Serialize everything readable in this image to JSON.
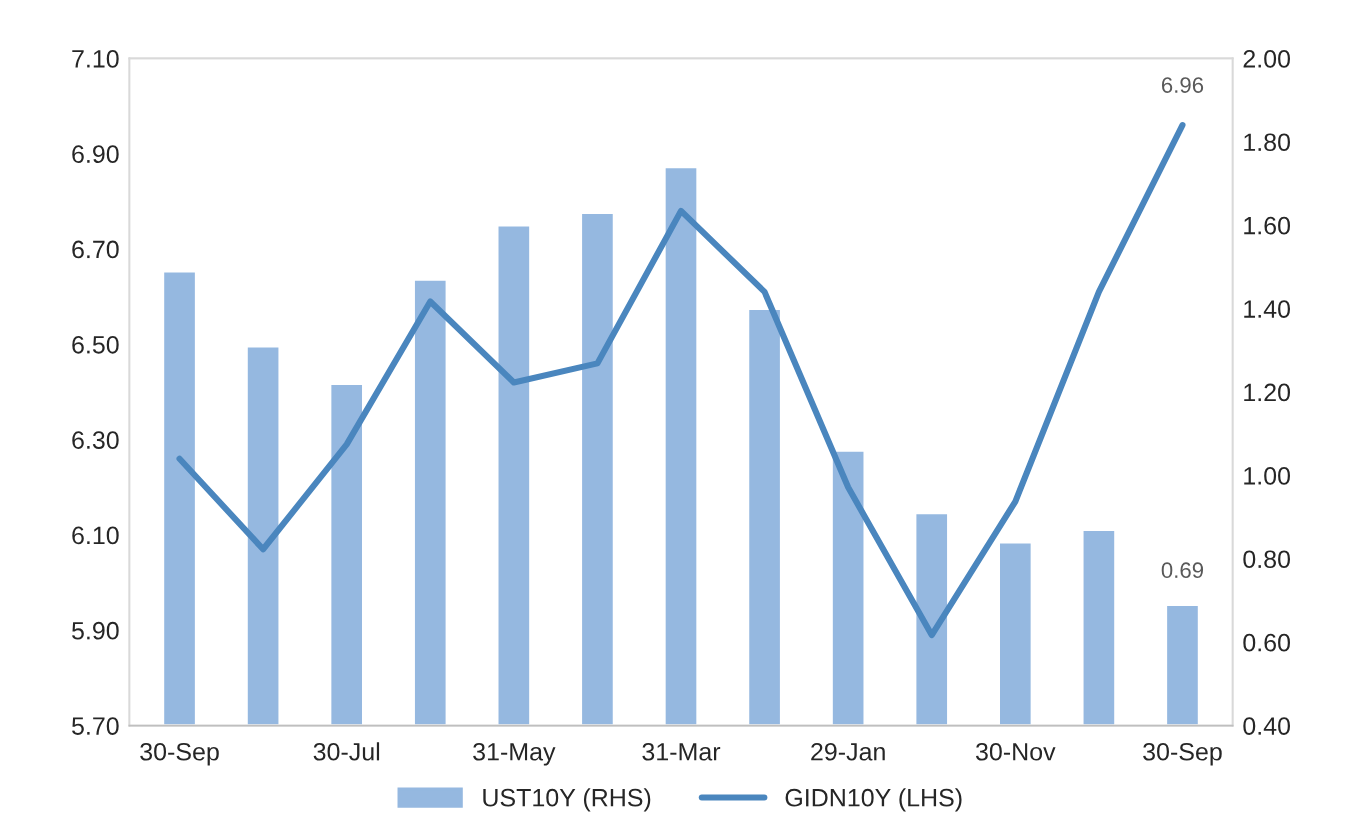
{
  "chart_data": {
    "type": "bar",
    "categories": [
      "30-Sep",
      null,
      "30-Jul",
      null,
      "31-May",
      null,
      "31-Mar",
      null,
      "29-Jan",
      null,
      "30-Nov",
      null,
      "30-Sep"
    ],
    "series": [
      {
        "name": "UST10Y (RHS)",
        "axis": "y2",
        "color": "#95b8e0",
        "values": [
          1.49,
          1.31,
          1.22,
          1.47,
          1.6,
          1.63,
          1.74,
          1.4,
          1.06,
          0.91,
          0.84,
          0.87,
          0.69
        ],
        "value_labels": [
          null,
          null,
          null,
          null,
          null,
          null,
          null,
          null,
          null,
          null,
          null,
          null,
          "0.69"
        ]
      },
      {
        "name": "GIDN10Y (LHS)",
        "type": "line",
        "color": "#4a86be",
        "values": [
          6.26,
          6.07,
          6.29,
          6.59,
          6.42,
          6.46,
          6.78,
          6.61,
          6.2,
          5.89,
          6.17,
          6.61,
          6.96
        ],
        "value_labels": [
          null,
          null,
          null,
          null,
          null,
          null,
          null,
          null,
          null,
          null,
          null,
          null,
          "6.96"
        ]
      }
    ],
    "ylim": [
      5.7,
      7.1
    ],
    "yticks": [
      {
        "value": 5.7,
        "label": "5.70"
      },
      {
        "value": 5.9,
        "label": "5.90"
      },
      {
        "value": 6.1,
        "label": "6.10"
      },
      {
        "value": 6.3,
        "label": "6.30"
      },
      {
        "value": 6.5,
        "label": "6.50"
      },
      {
        "value": 6.7,
        "label": "6.70"
      },
      {
        "value": 6.9,
        "label": "6.90"
      },
      {
        "value": 7.1,
        "label": "7.10"
      }
    ],
    "y2lim": [
      0.4,
      2.0
    ],
    "y2ticks": [
      {
        "value": 0.4,
        "label": "0.40"
      },
      {
        "value": 0.6,
        "label": "0.60"
      },
      {
        "value": 0.8,
        "label": "0.80"
      },
      {
        "value": 1.0,
        "label": "1.00"
      },
      {
        "value": 1.2,
        "label": "1.20"
      },
      {
        "value": 1.4,
        "label": "1.40"
      },
      {
        "value": 1.6,
        "label": "1.60"
      },
      {
        "value": 1.8,
        "label": "1.80"
      },
      {
        "value": 2.0,
        "label": "2.00"
      }
    ],
    "legend": "bottom",
    "grid": false,
    "marker": "none",
    "line_style": "solid"
  }
}
